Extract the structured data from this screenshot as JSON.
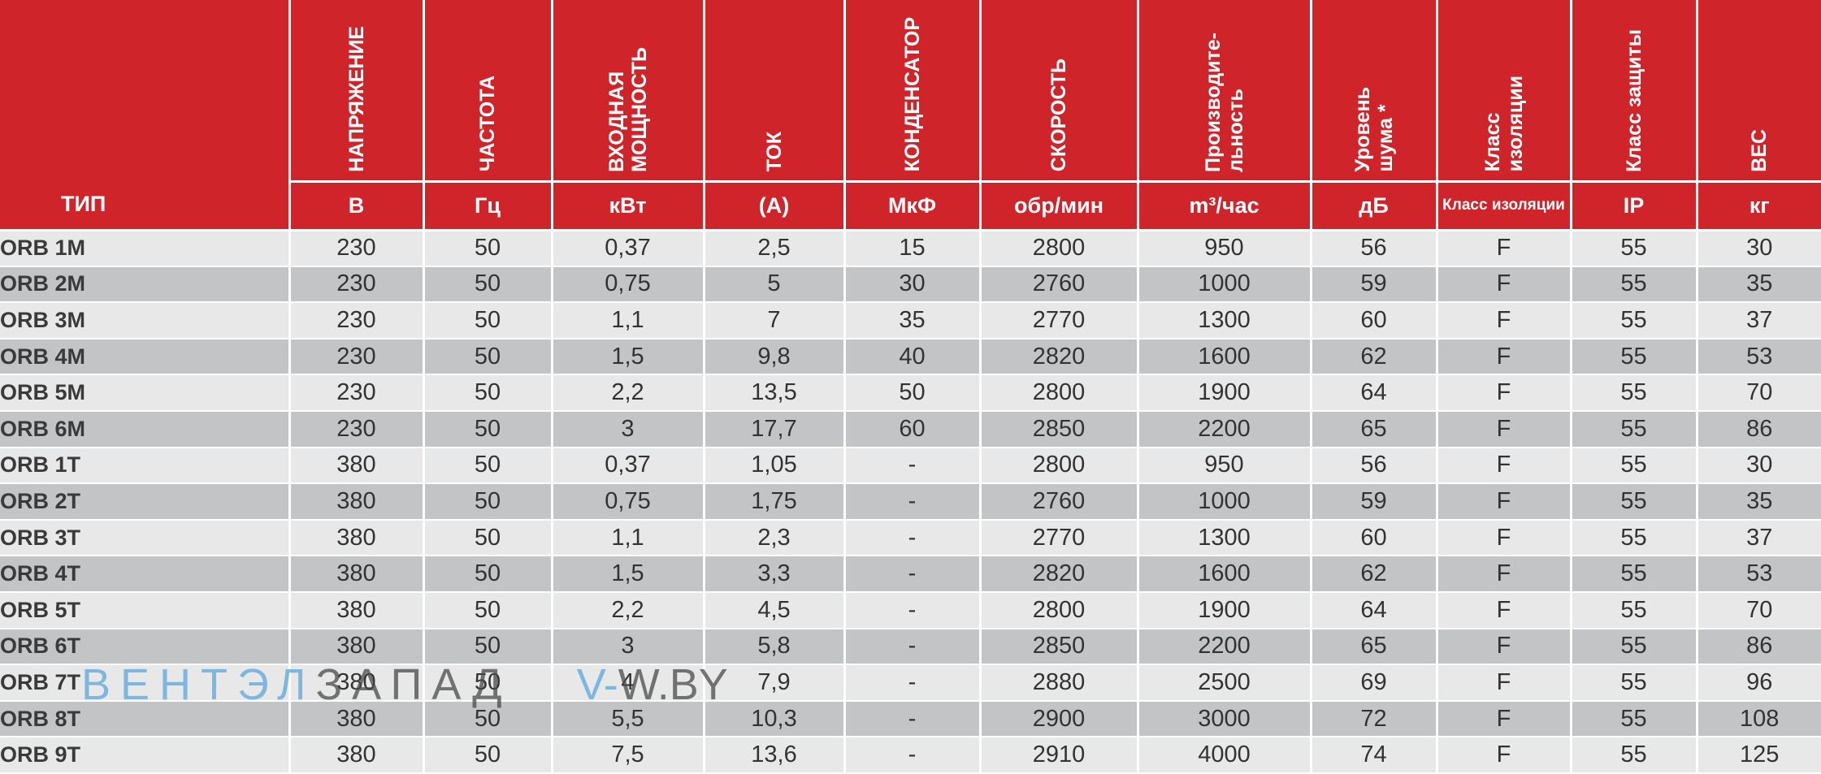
{
  "header": {
    "type_label": "ТИП",
    "columns": [
      {
        "name": "НАПРЯЖЕНИЕ",
        "unit": "В"
      },
      {
        "name": "ЧАСТОТА",
        "unit": "Гц"
      },
      {
        "name": "ВХОДНАЯ\nМОЩНОСТЬ",
        "unit": "кВт"
      },
      {
        "name": "ТОК",
        "unit": "(А)"
      },
      {
        "name": "КОНДЕНСАТОР",
        "unit": "МкФ"
      },
      {
        "name": "СКОРОСТЬ",
        "unit": "обр/мин"
      },
      {
        "name": "Производите-\nльность",
        "unit": "m³/час"
      },
      {
        "name": "Уровень\nшума *",
        "unit": "дБ"
      },
      {
        "name": "Класс\nизоляции",
        "unit": "Класс изоляции"
      },
      {
        "name": "Класс защиты",
        "unit": "IP"
      },
      {
        "name": "ВЕС",
        "unit": "кг"
      }
    ]
  },
  "rows": [
    [
      "ORB 1M",
      "230",
      "50",
      "0,37",
      "2,5",
      "15",
      "2800",
      "950",
      "56",
      "F",
      "55",
      "30"
    ],
    [
      "ORB 2M",
      "230",
      "50",
      "0,75",
      "5",
      "30",
      "2760",
      "1000",
      "59",
      "F",
      "55",
      "35"
    ],
    [
      "ORB 3M",
      "230",
      "50",
      "1,1",
      "7",
      "35",
      "2770",
      "1300",
      "60",
      "F",
      "55",
      "37"
    ],
    [
      "ORB 4M",
      "230",
      "50",
      "1,5",
      "9,8",
      "40",
      "2820",
      "1600",
      "62",
      "F",
      "55",
      "53"
    ],
    [
      "ORB 5M",
      "230",
      "50",
      "2,2",
      "13,5",
      "50",
      "2800",
      "1900",
      "64",
      "F",
      "55",
      "70"
    ],
    [
      "ORB 6M",
      "230",
      "50",
      "3",
      "17,7",
      "60",
      "2850",
      "2200",
      "65",
      "F",
      "55",
      "86"
    ],
    [
      "ORB 1T",
      "380",
      "50",
      "0,37",
      "1,05",
      "-",
      "2800",
      "950",
      "56",
      "F",
      "55",
      "30"
    ],
    [
      "ORB 2T",
      "380",
      "50",
      "0,75",
      "1,75",
      "-",
      "2760",
      "1000",
      "59",
      "F",
      "55",
      "35"
    ],
    [
      "ORB 3T",
      "380",
      "50",
      "1,1",
      "2,3",
      "-",
      "2770",
      "1300",
      "60",
      "F",
      "55",
      "37"
    ],
    [
      "ORB 4T",
      "380",
      "50",
      "1,5",
      "3,3",
      "-",
      "2820",
      "1600",
      "62",
      "F",
      "55",
      "53"
    ],
    [
      "ORB 5T",
      "380",
      "50",
      "2,2",
      "4,5",
      "-",
      "2800",
      "1900",
      "64",
      "F",
      "55",
      "70"
    ],
    [
      "ORB 6T",
      "380",
      "50",
      "3",
      "5,8",
      "-",
      "2850",
      "2200",
      "65",
      "F",
      "55",
      "86"
    ],
    [
      "ORB 7T",
      "380",
      "50",
      "4",
      "7,9",
      "-",
      "2880",
      "2500",
      "69",
      "F",
      "55",
      "96"
    ],
    [
      "ORB 8T",
      "380",
      "50",
      "5,5",
      "10,3",
      "-",
      "2900",
      "3000",
      "72",
      "F",
      "55",
      "108"
    ],
    [
      "ORB 9T",
      "380",
      "50",
      "7,5",
      "13,6",
      "-",
      "2910",
      "4000",
      "74",
      "F",
      "55",
      "125"
    ]
  ],
  "watermark": {
    "part1": "ВЕНТЭЛ",
    "part2": "ЗАПАД",
    "part3": "V-",
    "part4": "W.BY"
  },
  "colors": {
    "header_red": "#d0242b",
    "row_light": "#e8e8e9",
    "row_dark": "#c3c4c6",
    "watermark_blue": "#5aa7dc"
  }
}
